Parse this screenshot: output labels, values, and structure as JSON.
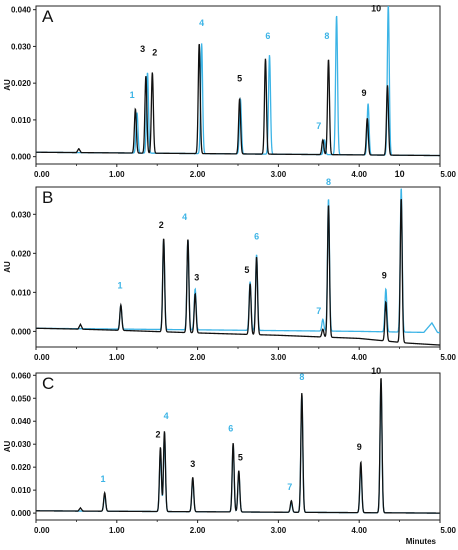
{
  "colors": {
    "black_trace": "#111111",
    "blue_trace": "#3cb4e6",
    "peak_label_black": "#111111",
    "peak_label_blue": "#3cb4e6"
  },
  "chart_data": [
    {
      "type": "line",
      "panel_label": "A",
      "ylabel": "AU",
      "xlabel": "",
      "xlim": [
        0,
        5
      ],
      "ylim": [
        -0.002,
        0.041
      ],
      "x_ticks": [
        "0.00",
        "1.00",
        "2.00",
        "3.00",
        "4.00",
        "5.00"
      ],
      "y_ticks": [
        "0.000",
        "0.010",
        "0.020",
        "0.030",
        "0.040"
      ],
      "y_tick_values": [
        0,
        0.01,
        0.02,
        0.03,
        0.04
      ],
      "baseline": {
        "black": [
          [
            0,
            0.0012
          ],
          [
            5,
            0.0003
          ]
        ],
        "blue": [
          [
            0,
            0.0012
          ],
          [
            5,
            0.0003
          ]
        ]
      },
      "noise": {
        "black": [
          [
            0.5,
            0.0008
          ],
          [
            0.53,
            0.0018
          ],
          [
            0.56,
            0.0006
          ]
        ],
        "blue": []
      },
      "series": [
        {
          "color_key": "black",
          "peaks": [
            [
              1.23,
              0.012
            ],
            [
              1.36,
              0.021
            ],
            [
              1.44,
              0.022
            ],
            [
              2.02,
              0.03
            ],
            [
              2.52,
              0.015
            ],
            [
              2.84,
              0.026
            ],
            [
              3.55,
              0.004
            ],
            [
              3.62,
              0.026
            ],
            [
              4.1,
              0.01
            ],
            [
              4.35,
              0.019
            ]
          ]
        },
        {
          "color_key": "blue",
          "peaks": [
            [
              1.25,
              0.011
            ],
            [
              1.38,
              0.022
            ],
            [
              2.05,
              0.03
            ],
            [
              2.53,
              0.015
            ],
            [
              2.89,
              0.027
            ],
            [
              3.57,
              0.004
            ],
            [
              3.72,
              0.038
            ],
            [
              4.11,
              0.014
            ],
            [
              4.36,
              0.041
            ]
          ]
        }
      ],
      "peak_labels": [
        {
          "text": "1",
          "x": 1.19,
          "y": 0.016,
          "color_key": "blue"
        },
        {
          "text": "3",
          "x": 1.32,
          "y": 0.0285,
          "color_key": "black"
        },
        {
          "text": "2",
          "x": 1.47,
          "y": 0.0275,
          "color_key": "black"
        },
        {
          "text": "4",
          "x": 2.05,
          "y": 0.0355,
          "color_key": "blue"
        },
        {
          "text": "5",
          "x": 2.52,
          "y": 0.0205,
          "color_key": "black"
        },
        {
          "text": "6",
          "x": 2.87,
          "y": 0.032,
          "color_key": "blue"
        },
        {
          "text": "7",
          "x": 3.5,
          "y": 0.0075,
          "color_key": "blue"
        },
        {
          "text": "8",
          "x": 3.6,
          "y": 0.032,
          "color_key": "blue"
        },
        {
          "text": "9",
          "x": 4.06,
          "y": 0.0165,
          "color_key": "black"
        },
        {
          "text": "10",
          "x": 4.21,
          "y": 0.0395,
          "color_key": "black"
        }
      ]
    },
    {
      "type": "line",
      "panel_label": "B",
      "ylabel": "AU",
      "xlabel": "",
      "xlim": [
        0,
        5
      ],
      "ylim": [
        -0.004,
        0.037
      ],
      "x_ticks": [
        "0.00",
        "1.00",
        "2.00",
        "3.00",
        "4.00",
        "5.00"
      ],
      "y_ticks": [
        "0.000",
        "0.010",
        "0.020",
        "0.030"
      ],
      "y_tick_values": [
        0,
        0.01,
        0.02,
        0.03
      ],
      "baseline": {
        "black": [
          [
            0,
            0.0008
          ],
          [
            0.5,
            0.0006
          ],
          [
            1.0,
            0.0003
          ],
          [
            2.0,
            -0.0004
          ],
          [
            3.0,
            -0.001
          ],
          [
            4.0,
            -0.0018
          ],
          [
            4.6,
            -0.003
          ],
          [
            5.0,
            -0.0035
          ]
        ],
        "blue": [
          [
            0,
            0.0008
          ],
          [
            0.5,
            0.0007
          ],
          [
            1.0,
            0.0006
          ],
          [
            2.0,
            0.0004
          ],
          [
            3.0,
            0.0002
          ],
          [
            4.0,
            0.0
          ],
          [
            4.6,
            -0.0002
          ],
          [
            5.0,
            -0.0003
          ]
        ]
      },
      "noise": {
        "black": [
          [
            0.52,
            0.0004
          ],
          [
            0.55,
            0.0017
          ],
          [
            0.58,
            0.0005
          ]
        ],
        "blue": [
          [
            4.8,
            -0.0012
          ],
          [
            4.9,
            0.0016
          ],
          [
            4.97,
            -0.0006
          ]
        ]
      },
      "series": [
        {
          "color_key": "black",
          "peaks": [
            [
              1.05,
              0.0065
            ],
            [
              1.58,
              0.024
            ],
            [
              1.88,
              0.024
            ],
            [
              1.97,
              0.01
            ],
            [
              2.65,
              0.013
            ],
            [
              2.73,
              0.02
            ],
            [
              3.55,
              0.002
            ],
            [
              3.62,
              0.034
            ],
            [
              4.33,
              0.01
            ],
            [
              4.52,
              0.037
            ]
          ]
        },
        {
          "color_key": "blue",
          "peaks": [
            [
              1.05,
              0.006
            ],
            [
              1.58,
              0.023
            ],
            [
              1.88,
              0.023
            ],
            [
              1.97,
              0.0105
            ],
            [
              2.65,
              0.0125
            ],
            [
              2.73,
              0.0195
            ],
            [
              3.55,
              0.003
            ],
            [
              3.62,
              0.034
            ],
            [
              4.33,
              0.011
            ],
            [
              4.52,
              0.037
            ]
          ]
        }
      ],
      "peak_labels": [
        {
          "text": "1",
          "x": 1.04,
          "y": 0.011,
          "color_key": "blue"
        },
        {
          "text": "2",
          "x": 1.55,
          "y": 0.0265,
          "color_key": "black"
        },
        {
          "text": "4",
          "x": 1.84,
          "y": 0.0285,
          "color_key": "blue"
        },
        {
          "text": "3",
          "x": 1.99,
          "y": 0.013,
          "color_key": "black"
        },
        {
          "text": "5",
          "x": 2.61,
          "y": 0.015,
          "color_key": "black"
        },
        {
          "text": "6",
          "x": 2.73,
          "y": 0.0235,
          "color_key": "blue"
        },
        {
          "text": "7",
          "x": 3.5,
          "y": 0.0045,
          "color_key": "blue"
        },
        {
          "text": "8",
          "x": 3.62,
          "y": 0.0375,
          "color_key": "blue"
        },
        {
          "text": "9",
          "x": 4.31,
          "y": 0.0135,
          "color_key": "black"
        },
        {
          "text": "10",
          "x": 4.5,
          "y": 0.0395,
          "color_key": "black"
        }
      ]
    },
    {
      "type": "line",
      "panel_label": "C",
      "ylabel": "AU",
      "xlabel": "Minutes",
      "xlim": [
        0,
        5
      ],
      "ylim": [
        -0.003,
        0.061
      ],
      "x_ticks": [
        "0.00",
        "1.00",
        "2.00",
        "3.00",
        "4.00",
        "5.00"
      ],
      "y_ticks": [
        "0.000",
        "0.010",
        "0.020",
        "0.030",
        "0.040",
        "0.050",
        "0.060"
      ],
      "y_tick_values": [
        0,
        0.01,
        0.02,
        0.03,
        0.04,
        0.05,
        0.06
      ],
      "baseline": {
        "black": [
          [
            0,
            0.001
          ],
          [
            5,
            0.0
          ]
        ],
        "blue": [
          [
            0,
            0.001
          ],
          [
            5,
            0.0
          ]
        ]
      },
      "noise": {
        "black": [
          [
            0.52,
            0.0006
          ],
          [
            0.55,
            0.002
          ],
          [
            0.58,
            0.0006
          ]
        ],
        "blue": []
      },
      "series": [
        {
          "color_key": "black",
          "peaks": [
            [
              0.85,
              0.008
            ],
            [
              1.54,
              0.028
            ],
            [
              1.59,
              0.035
            ],
            [
              1.94,
              0.015
            ],
            [
              2.44,
              0.03
            ],
            [
              2.51,
              0.018
            ],
            [
              3.16,
              0.005
            ],
            [
              3.29,
              0.052
            ],
            [
              4.02,
              0.022
            ],
            [
              4.27,
              0.059
            ]
          ]
        },
        {
          "color_key": "blue",
          "peaks": [
            [
              0.85,
              0.007
            ],
            [
              1.54,
              0.026
            ],
            [
              1.59,
              0.034
            ],
            [
              1.94,
              0.014
            ],
            [
              2.44,
              0.029
            ],
            [
              2.51,
              0.017
            ],
            [
              3.16,
              0.004
            ],
            [
              3.29,
              0.051
            ],
            [
              4.02,
              0.02
            ],
            [
              4.27,
              0.057
            ]
          ]
        }
      ],
      "peak_labels": [
        {
          "text": "1",
          "x": 0.83,
          "y": 0.0135,
          "color_key": "blue"
        },
        {
          "text": "2",
          "x": 1.51,
          "y": 0.033,
          "color_key": "black"
        },
        {
          "text": "4",
          "x": 1.61,
          "y": 0.041,
          "color_key": "blue"
        },
        {
          "text": "3",
          "x": 1.94,
          "y": 0.02,
          "color_key": "black"
        },
        {
          "text": "6",
          "x": 2.41,
          "y": 0.0355,
          "color_key": "blue"
        },
        {
          "text": "5",
          "x": 2.53,
          "y": 0.023,
          "color_key": "black"
        },
        {
          "text": "7",
          "x": 3.14,
          "y": 0.01,
          "color_key": "blue"
        },
        {
          "text": "8",
          "x": 3.29,
          "y": 0.058,
          "color_key": "blue"
        },
        {
          "text": "9",
          "x": 4.0,
          "y": 0.0275,
          "color_key": "black"
        },
        {
          "text": "10",
          "x": 4.21,
          "y": 0.0605,
          "color_key": "black"
        }
      ]
    }
  ]
}
